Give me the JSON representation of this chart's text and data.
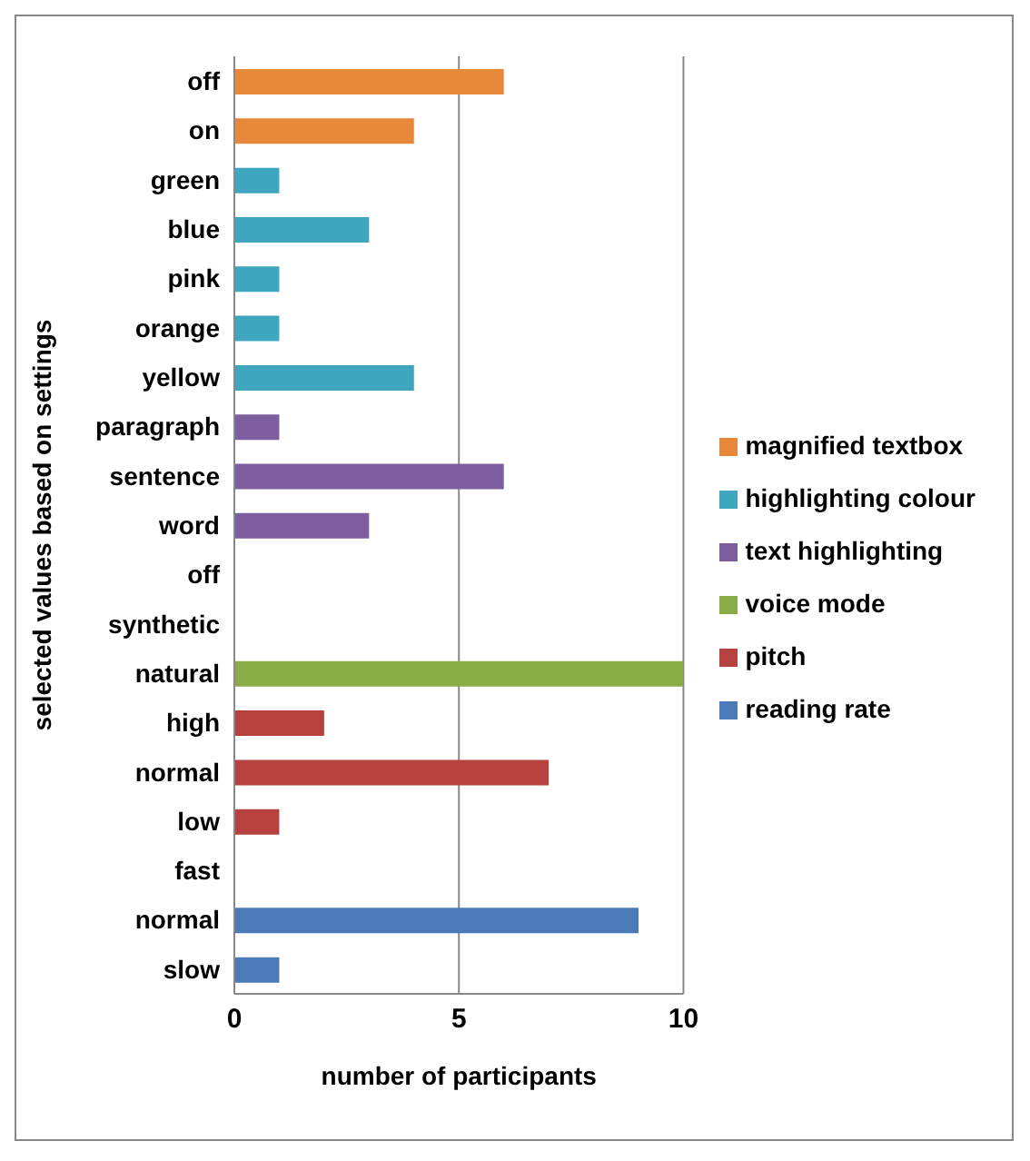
{
  "chart_data": {
    "type": "bar",
    "orientation": "horizontal",
    "stacked": true,
    "xlabel": "number of participants",
    "ylabel": "selected values based on  settings",
    "categories": [
      "off",
      "on",
      "green",
      "blue",
      "pink",
      "orange",
      "yellow",
      "paragraph",
      "sentence",
      "word",
      "off",
      "synthetic",
      "natural",
      "high",
      "normal",
      "low",
      "fast",
      "normal",
      "slow"
    ],
    "series": [
      {
        "name": "magnified textbox",
        "color": "#e8883a",
        "values": [
          6,
          4,
          null,
          null,
          null,
          null,
          null,
          null,
          null,
          null,
          null,
          null,
          null,
          null,
          null,
          null,
          null,
          null,
          null
        ]
      },
      {
        "name": "highlighting colour",
        "color": "#3ea6bf",
        "values": [
          null,
          null,
          1,
          3,
          1,
          1,
          4,
          null,
          null,
          null,
          null,
          null,
          null,
          null,
          null,
          null,
          null,
          null,
          null
        ]
      },
      {
        "name": "text highlighting",
        "color": "#7d5fa0",
        "values": [
          null,
          null,
          null,
          null,
          null,
          null,
          null,
          1,
          6,
          3,
          null,
          null,
          null,
          null,
          null,
          null,
          null,
          null,
          null
        ]
      },
      {
        "name": "voice mode",
        "color": "#8aac46",
        "values": [
          null,
          null,
          null,
          null,
          null,
          null,
          null,
          null,
          null,
          null,
          0,
          0,
          10,
          null,
          null,
          null,
          null,
          null,
          null
        ]
      },
      {
        "name": "pitch",
        "color": "#b7413e",
        "values": [
          null,
          null,
          null,
          null,
          null,
          null,
          null,
          null,
          null,
          null,
          null,
          null,
          null,
          2,
          7,
          1,
          null,
          null,
          null
        ]
      },
      {
        "name": "reading rate",
        "color": "#4a7ab8",
        "values": [
          null,
          null,
          null,
          null,
          null,
          null,
          null,
          null,
          null,
          null,
          null,
          null,
          null,
          null,
          null,
          null,
          0,
          9,
          1
        ]
      }
    ],
    "xlim": [
      0,
      10
    ],
    "xticks": [
      0,
      5,
      10
    ],
    "grid": "x",
    "legend": "right"
  }
}
